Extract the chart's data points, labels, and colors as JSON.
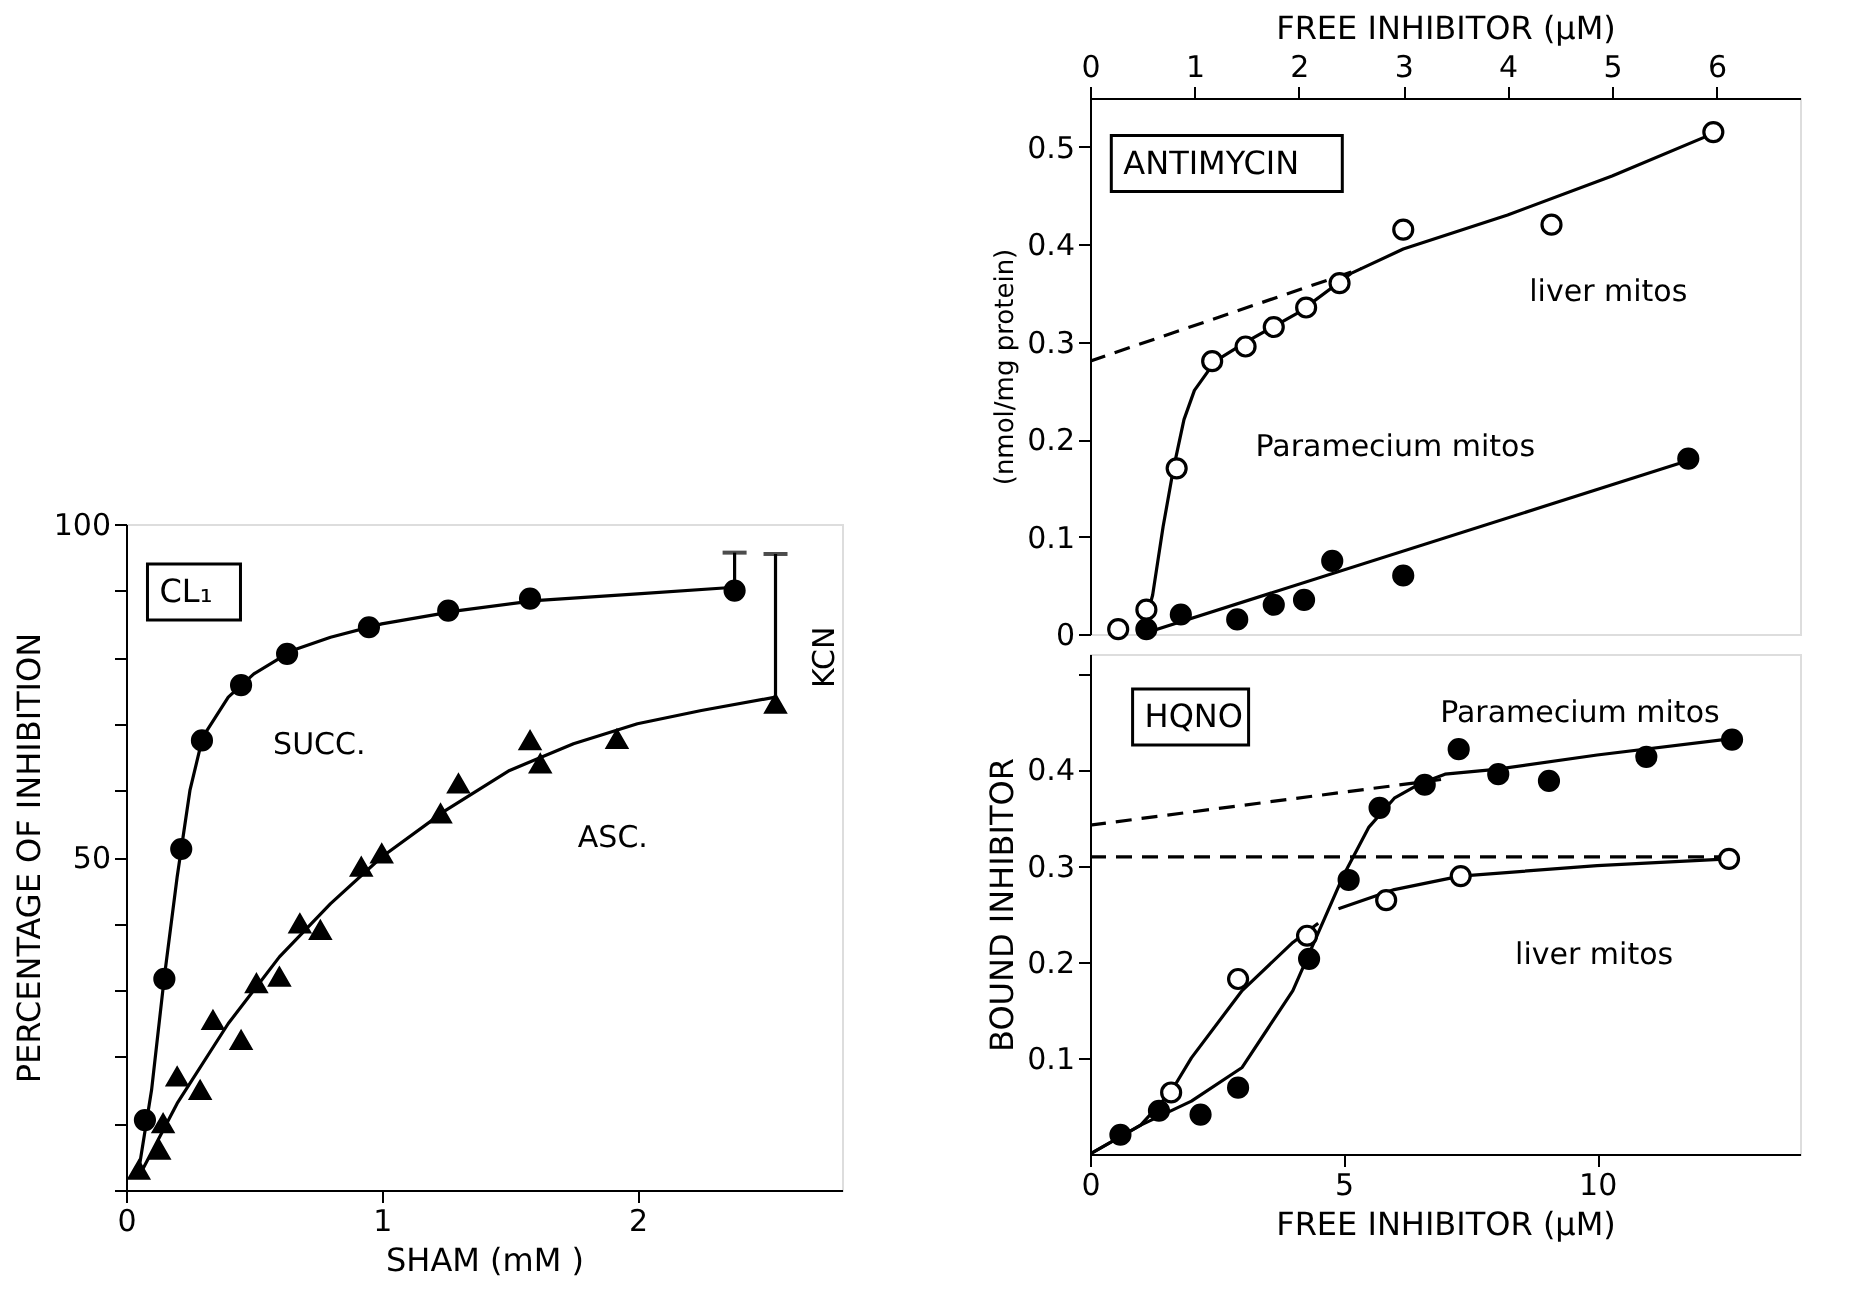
{
  "chart_data": [
    {
      "type": "scatter",
      "xlabel": "SHAM  (mM )",
      "ylabel": "PERCENTAGE OF INHIBITION",
      "xlim": [
        0,
        2.8
      ],
      "ylim": [
        0,
        100
      ],
      "xticks": [
        0,
        1,
        2
      ],
      "yticks": [
        {
          "value": 0,
          "label": null
        },
        {
          "value": 10,
          "label": null
        },
        {
          "value": 20,
          "label": null
        },
        {
          "value": 30,
          "label": null
        },
        {
          "value": 40,
          "label": null
        },
        50,
        {
          "value": 60,
          "label": null
        },
        {
          "value": 70,
          "label": null
        },
        {
          "value": 80,
          "label": null
        },
        {
          "value": 90,
          "label": null
        },
        100
      ],
      "grid": false,
      "legend": false,
      "series": [
        {
          "type": "line",
          "color": "#000000",
          "line_style": "solid",
          "x": [
            0.05,
            0.1,
            0.15,
            0.2,
            0.25,
            0.3,
            0.4,
            0.5,
            0.65,
            0.8,
            1.0,
            1.3,
            1.6,
            2.0,
            2.38
          ],
          "values": [
            3,
            15,
            32,
            47,
            60,
            68,
            74,
            77.5,
            81,
            83,
            85,
            87,
            88.5,
            89.5,
            90.5
          ]
        },
        {
          "type": "line",
          "color": "#000000",
          "line_style": "solid",
          "x": [
            0.05,
            0.2,
            0.4,
            0.6,
            0.8,
            1.0,
            1.25,
            1.5,
            1.75,
            2.0,
            2.25,
            2.54
          ],
          "values": [
            2,
            13,
            25,
            35,
            43,
            50,
            57,
            63,
            67,
            70,
            72,
            74
          ]
        },
        {
          "type": "scatter",
          "color": "#000000",
          "marker": "circle",
          "x": [
            0.074,
            0.15,
            0.216,
            0.297,
            0.45,
            0.63,
            0.95,
            1.26,
            1.58,
            2.38
          ],
          "values": [
            10.5,
            31.7,
            51.2,
            67.5,
            75.8,
            80.5,
            84.5,
            87,
            88.8,
            90
          ],
          "errors": [
            null,
            null,
            null,
            null,
            null,
            null,
            null,
            null,
            null,
            [
              90,
              95.7
            ]
          ]
        },
        {
          "type": "scatter",
          "color": "#000000",
          "marker": "triangle",
          "x": [
            0.05,
            0.13,
            0.145,
            0.2,
            0.29,
            0.34,
            0.45,
            0.51,
            0.6,
            0.68,
            0.76,
            0.92,
            1.0,
            1.23,
            1.3,
            1.58,
            1.62,
            1.92,
            2.54
          ],
          "values": [
            3,
            6,
            10,
            17,
            15,
            25.5,
            22.5,
            31,
            32,
            40,
            39,
            48.5,
            50.5,
            56.5,
            61,
            67.5,
            64,
            67.7,
            73
          ],
          "errors": [
            null,
            null,
            null,
            null,
            null,
            null,
            null,
            null,
            null,
            null,
            null,
            null,
            null,
            null,
            null,
            null,
            null,
            null,
            [
              73,
              95.5
            ]
          ]
        }
      ],
      "annotations": [
        "CL₁",
        "SUCC.",
        "ASC.",
        "KCN"
      ]
    },
    {
      "type": "scatter",
      "xlabel": "FREE INHIBITOR (µM)",
      "ylabel": "(nmol/mg protein)",
      "xlim": [
        0,
        6.8
      ],
      "ylim": [
        0,
        0.55
      ],
      "xticks": [
        0,
        1,
        2,
        3,
        4,
        5,
        6
      ],
      "yticks": [
        0,
        0.1,
        0.2,
        0.3,
        0.4,
        0.5
      ],
      "grid": false,
      "legend": false,
      "series": [
        {
          "type": "line",
          "color": "#000000",
          "line_style": "solid",
          "x": [
            0.5,
            0.6,
            0.7,
            0.8,
            0.9,
            1.0,
            1.2,
            1.5,
            2.0,
            2.5,
            3.0,
            4.0,
            5.0,
            6.0
          ],
          "values": [
            0.0,
            0.04,
            0.11,
            0.17,
            0.22,
            0.25,
            0.28,
            0.3,
            0.33,
            0.37,
            0.395,
            0.43,
            0.47,
            0.515
          ]
        },
        {
          "type": "line",
          "color": "#000000",
          "line_style": "dashed",
          "x": [
            0,
            2.6
          ],
          "values": [
            0.28,
            0.375
          ]
        },
        {
          "type": "line",
          "color": "#000000",
          "line_style": "solid",
          "x": [
            0.5,
            5.73
          ],
          "values": [
            0.0,
            0.178
          ]
        },
        {
          "type": "scatter",
          "color": "#ffffff",
          "marker": "circle",
          "x": [
            0.27,
            0.54,
            0.83,
            1.17,
            1.49,
            1.76,
            2.07,
            2.39,
            3.0,
            4.42,
            5.97
          ],
          "values": [
            0.005,
            0.025,
            0.17,
            0.28,
            0.295,
            0.315,
            0.335,
            0.36,
            0.415,
            0.42,
            0.515
          ]
        },
        {
          "type": "scatter",
          "color": "#000000",
          "marker": "circle",
          "x": [
            0.54,
            0.87,
            1.41,
            1.76,
            2.05,
            2.32,
            3.0,
            5.73
          ],
          "values": [
            0.005,
            0.02,
            0.015,
            0.03,
            0.035,
            0.075,
            0.06,
            0.18
          ]
        }
      ],
      "annotations": [
        "ANTIMYCIN",
        "liver mitos",
        "Paramecium mitos"
      ]
    },
    {
      "type": "scatter",
      "xlabel": "FREE INHIBITOR (µM)",
      "ylabel": "BOUND INHIBITOR",
      "xlim": [
        0,
        14
      ],
      "ylim": [
        0,
        0.52
      ],
      "xticks": [
        0,
        5,
        10
      ],
      "yticks": [
        0.1,
        0.2,
        0.3,
        0.4,
        {
          "value": 0.5,
          "label": null
        }
      ],
      "grid": false,
      "legend": false,
      "series": [
        {
          "type": "line",
          "color": "#000000",
          "line_style": "solid",
          "x": [
            0,
            1,
            2,
            3,
            3.5,
            4,
            4.5,
            5,
            5.5,
            6,
            6.5,
            7,
            8,
            10,
            12.66
          ],
          "values": [
            0,
            0.03,
            0.055,
            0.09,
            0.13,
            0.17,
            0.23,
            0.29,
            0.34,
            0.37,
            0.385,
            0.395,
            0.4,
            0.415,
            0.432
          ]
        },
        {
          "type": "line",
          "color": "#000000",
          "line_style": "dashed",
          "x": [
            0,
            7
          ],
          "values": [
            0.342,
            0.39
          ]
        },
        {
          "type": "line",
          "color": "#000000",
          "line_style": "solid",
          "x": [
            0,
            1,
            1.6,
            2,
            3,
            4,
            4.5
          ],
          "values": [
            0,
            0.03,
            0.065,
            0.1,
            0.17,
            0.22,
            0.24
          ]
        },
        {
          "type": "line",
          "color": "#000000",
          "line_style": "solid",
          "x": [
            4.9,
            6,
            7.3,
            10,
            12.6
          ],
          "values": [
            0.255,
            0.275,
            0.289,
            0.3,
            0.307
          ]
        },
        {
          "type": "line",
          "color": "#000000",
          "line_style": "dashed",
          "x": [
            0,
            12.6
          ],
          "values": [
            0.309,
            0.309
          ]
        },
        {
          "type": "scatter",
          "color": "#000000",
          "marker": "circle",
          "x": [
            0.6,
            1.36,
            2.18,
            2.92,
            4.32,
            5.1,
            5.71,
            6.6,
            7.27,
            8.05,
            9.05,
            10.97,
            12.66
          ],
          "values": [
            0.02,
            0.045,
            0.041,
            0.069,
            0.203,
            0.285,
            0.36,
            0.384,
            0.421,
            0.395,
            0.388,
            0.413,
            0.431
          ]
        },
        {
          "type": "scatter",
          "color": "#ffffff",
          "marker": "circle",
          "x": [
            1.6,
            2.92,
            4.28,
            5.84,
            7.31,
            12.6
          ],
          "values": [
            0.064,
            0.182,
            0.227,
            0.264,
            0.289,
            0.307
          ]
        }
      ],
      "annotations": [
        "HQNO",
        "Paramecium mitos",
        "liver mitos"
      ]
    }
  ]
}
